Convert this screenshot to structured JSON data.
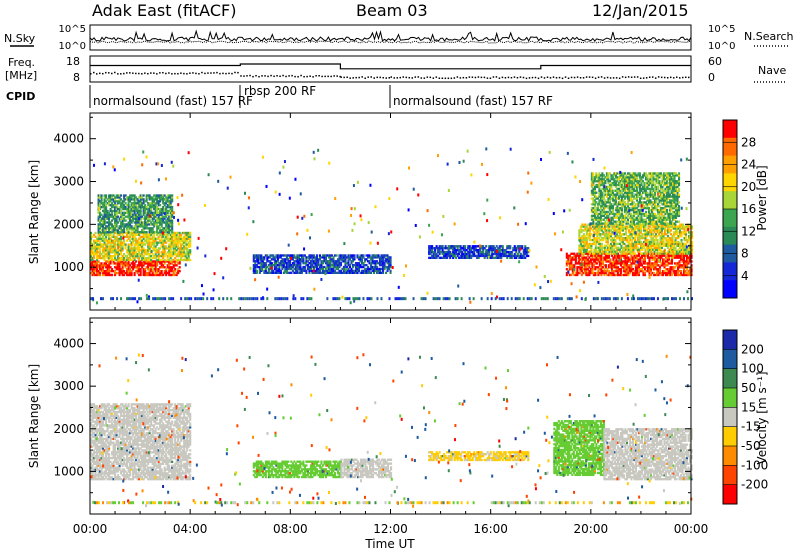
{
  "header": {
    "radar": "Adak East (fitACF)",
    "beam": "Beam 03",
    "date": "12/Jan/2015"
  },
  "noise_panel": {
    "left_label": "N.Sky",
    "right_label": "N.Search",
    "left_ticks": [
      "10^5",
      "10^0"
    ],
    "right_ticks": [
      "10^5",
      "10^0"
    ]
  },
  "freq_panel": {
    "left_label": "Freq.",
    "unit": "[MHz]",
    "right_label": "Nave",
    "left_ticks": [
      "18",
      "8"
    ],
    "right_ticks": [
      "60",
      "0"
    ]
  },
  "cpid_panel": {
    "label": "CPID",
    "modes": [
      {
        "text": "normalsound (fast) 157 RF",
        "start": "00:00",
        "end": "06:00"
      },
      {
        "text": "rbsp 200 RF",
        "start": "06:00",
        "end": "12:00"
      },
      {
        "text": "normalsound (fast) 157 RF",
        "start": "12:00",
        "end": "24:00"
      }
    ]
  },
  "power_panel": {
    "ylabel": "Slant Range [km]",
    "cbar_label": "Power [dB]",
    "yticks": [
      "4000",
      "3000",
      "2000",
      "1000"
    ],
    "cbar_ticks": [
      "28",
      "24",
      "20",
      "16",
      "12",
      "8",
      "4"
    ],
    "cbar_colors": [
      "#ff0000",
      "#ff6a00",
      "#ffa000",
      "#ffd500",
      "#a8d538",
      "#3ca550",
      "#2a8a55",
      "#1e5aa0",
      "#1428d8",
      "#0000ff"
    ]
  },
  "velocity_panel": {
    "ylabel": "Slant Range [km]",
    "cbar_label": "Velocity [m s⁻¹]",
    "yticks": [
      "4000",
      "3000",
      "2000",
      "1000"
    ],
    "cbar_ticks": [
      "200",
      "100",
      "50",
      "15",
      "-15",
      "-50",
      "-100",
      "-200"
    ],
    "cbar_colors": [
      "#1a2aa8",
      "#1e5aa0",
      "#3c8a50",
      "#66cc33",
      "#c8c8c0",
      "#ffcc00",
      "#ff8c00",
      "#ff4400",
      "#ff0000"
    ]
  },
  "xaxis": {
    "label": "Time UT",
    "ticks": [
      "00:00",
      "04:00",
      "08:00",
      "12:00",
      "16:00",
      "20:00",
      "00:00"
    ]
  },
  "chart_data": [
    {
      "type": "heatmap",
      "title": "Power",
      "xlabel": "Time UT",
      "ylabel": "Slant Range [km]",
      "xlim": [
        0,
        24
      ],
      "ylim": [
        0,
        4600
      ],
      "zlim": [
        0,
        30
      ],
      "regions": [
        {
          "t0": 0.0,
          "t1": 3.6,
          "r0": 800,
          "r1": 1150,
          "power": 28
        },
        {
          "t0": 0.0,
          "t1": 4.0,
          "r0": 1150,
          "r1": 1800,
          "power": 18
        },
        {
          "t0": 0.3,
          "t1": 3.3,
          "r0": 1800,
          "r1": 2700,
          "power": 12
        },
        {
          "t0": 6.5,
          "t1": 12.0,
          "r0": 850,
          "r1": 1300,
          "power": 6
        },
        {
          "t0": 13.5,
          "t1": 17.5,
          "r0": 1200,
          "r1": 1500,
          "power": 6
        },
        {
          "t0": 19.0,
          "t1": 24.0,
          "r0": 800,
          "r1": 1300,
          "power": 28
        },
        {
          "t0": 19.5,
          "t1": 24.0,
          "r0": 1300,
          "r1": 2000,
          "power": 18
        },
        {
          "t0": 20.0,
          "t1": 23.5,
          "r0": 2000,
          "r1": 3200,
          "power": 14
        }
      ]
    },
    {
      "type": "heatmap",
      "title": "Velocity",
      "xlabel": "Time UT",
      "ylabel": "Slant Range [km]",
      "xlim": [
        0,
        24
      ],
      "ylim": [
        0,
        4600
      ],
      "zlim": [
        -200,
        200
      ],
      "regions": [
        {
          "t0": 0.0,
          "t1": 4.0,
          "r0": 800,
          "r1": 2600,
          "velocity": 0
        },
        {
          "t0": 6.5,
          "t1": 10.0,
          "r0": 850,
          "r1": 1250,
          "velocity": 30
        },
        {
          "t0": 10.0,
          "t1": 12.0,
          "r0": 850,
          "r1": 1300,
          "velocity": 0
        },
        {
          "t0": 13.5,
          "t1": 17.5,
          "r0": 1250,
          "r1": 1450,
          "velocity": -20
        },
        {
          "t0": 18.5,
          "t1": 20.5,
          "r0": 900,
          "r1": 2200,
          "velocity": 30
        },
        {
          "t0": 20.5,
          "t1": 24.0,
          "r0": 800,
          "r1": 2000,
          "velocity": 0
        }
      ]
    }
  ]
}
